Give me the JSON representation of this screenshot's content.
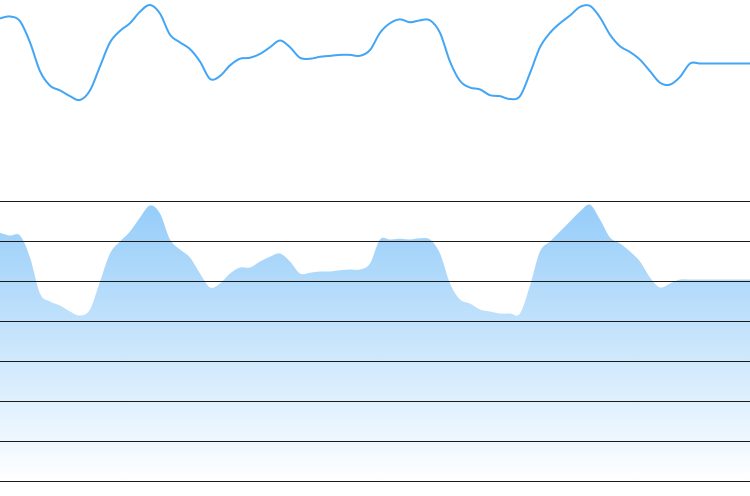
{
  "colors": {
    "line": "#42a5f5",
    "area_top": "#90caf9",
    "area_bottom": "#ffffff",
    "grid": "#1a1a1a",
    "background": "#ffffff"
  },
  "chart_data": [
    {
      "type": "line",
      "title": "",
      "xlabel": "",
      "ylabel": "",
      "legend": "none",
      "grid": false,
      "x": [
        0,
        1,
        2,
        3,
        4,
        5,
        6,
        7,
        8,
        9,
        10,
        11,
        12,
        13,
        14,
        15,
        16,
        17,
        18,
        19,
        20,
        21,
        22,
        23,
        24,
        25,
        26,
        27,
        28,
        29,
        30,
        31,
        32,
        33,
        34,
        35,
        36,
        37,
        38,
        39,
        40,
        41,
        42,
        43,
        44,
        45,
        46,
        47,
        48,
        49,
        50,
        51,
        52,
        53,
        54,
        55,
        56,
        57,
        58,
        59,
        60,
        61,
        62,
        63,
        64,
        65,
        66,
        67,
        68,
        69,
        70,
        71,
        72,
        73,
        74,
        75
      ],
      "series": [
        {
          "values": [
            0.85,
            0.87,
            0.82,
            0.6,
            0.3,
            0.15,
            0.1,
            0.04,
            0.0,
            0.1,
            0.35,
            0.6,
            0.72,
            0.8,
            0.92,
            0.99,
            0.9,
            0.68,
            0.6,
            0.53,
            0.4,
            0.22,
            0.25,
            0.36,
            0.43,
            0.44,
            0.48,
            0.55,
            0.62,
            0.55,
            0.44,
            0.43,
            0.45,
            0.46,
            0.47,
            0.47,
            0.46,
            0.52,
            0.7,
            0.8,
            0.84,
            0.81,
            0.83,
            0.83,
            0.7,
            0.4,
            0.2,
            0.13,
            0.11,
            0.05,
            0.04,
            0.01,
            0.04,
            0.28,
            0.55,
            0.7,
            0.8,
            0.88,
            0.97,
            0.98,
            0.86,
            0.68,
            0.56,
            0.5,
            0.42,
            0.3,
            0.18,
            0.16,
            0.24,
            0.38,
            0.38,
            0.38,
            0.38,
            0.38,
            0.38,
            0.38
          ]
        }
      ]
    },
    {
      "type": "area",
      "title": "",
      "xlabel": "",
      "ylabel": "",
      "legend": "none",
      "grid": true,
      "ylim": [
        0,
        7
      ],
      "gridlines": [
        0,
        1,
        2,
        3,
        4,
        5,
        6,
        7
      ],
      "x": [
        0,
        1,
        2,
        3,
        4,
        5,
        6,
        7,
        8,
        9,
        10,
        11,
        12,
        13,
        14,
        15,
        16,
        17,
        18,
        19,
        20,
        21,
        22,
        23,
        24,
        25,
        26,
        27,
        28,
        29,
        30,
        31,
        32,
        33,
        34,
        35,
        36,
        37,
        38,
        39,
        40,
        41,
        42,
        43,
        44,
        45,
        46,
        47,
        48,
        49,
        50,
        51,
        52,
        53,
        54,
        55,
        56,
        57,
        58,
        59,
        60,
        61,
        62,
        63,
        64,
        65,
        66,
        67,
        68,
        69,
        70,
        71,
        72,
        73,
        74,
        75
      ],
      "series": [
        {
          "values": [
            6.22,
            6.15,
            6.15,
            5.6,
            4.7,
            4.5,
            4.4,
            4.25,
            4.15,
            4.3,
            5.0,
            5.7,
            6.0,
            6.25,
            6.6,
            6.9,
            6.7,
            6.05,
            5.8,
            5.6,
            5.2,
            4.85,
            4.95,
            5.2,
            5.35,
            5.35,
            5.5,
            5.62,
            5.7,
            5.5,
            5.2,
            5.22,
            5.25,
            5.25,
            5.28,
            5.3,
            5.3,
            5.45,
            6.05,
            6.05,
            6.07,
            6.05,
            6.08,
            6.05,
            5.7,
            4.95,
            4.55,
            4.45,
            4.3,
            4.25,
            4.2,
            4.2,
            4.2,
            4.9,
            5.75,
            6.0,
            6.25,
            6.5,
            6.75,
            6.92,
            6.55,
            6.1,
            5.95,
            5.75,
            5.5,
            5.1,
            4.85,
            4.95,
            5.05,
            5.05,
            5.05,
            5.05,
            5.05,
            5.05,
            5.05,
            5.05
          ]
        }
      ]
    }
  ]
}
